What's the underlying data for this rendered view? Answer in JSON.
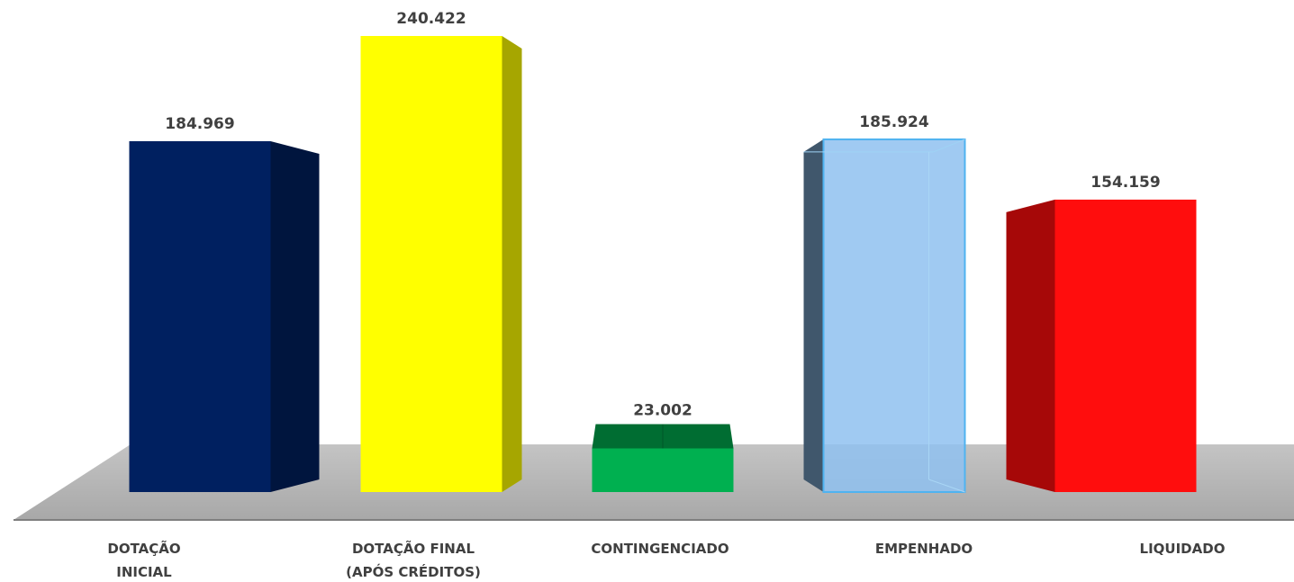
{
  "chart_data": {
    "type": "bar",
    "three_d": true,
    "categories": [
      "DOTAÇÃO INICIAL",
      "DOTAÇÃO FINAL (APÓS CRÉDITOS)",
      "CONTINGENCIADO",
      "EMPENHADO",
      "LIQUIDADO"
    ],
    "category_lines": [
      [
        "DOTAÇÃO",
        "INICIAL"
      ],
      [
        "DOTAÇÃO FINAL",
        "(APÓS CRÉDITOS)"
      ],
      [
        "CONTINGENCIADO"
      ],
      [
        "EMPENHADO"
      ],
      [
        "LIQUIDADO"
      ]
    ],
    "values": [
      184969,
      240422,
      23002,
      185924,
      154159
    ],
    "value_labels": [
      "184.969",
      "240.422",
      "23.002",
      "185.924",
      "154.159"
    ],
    "colors": [
      "#002060",
      "#FFFF00",
      "#00B050",
      "#8FC1F0",
      "#FF0D0D"
    ],
    "floor_color": "#BFBFBF",
    "ylim": [
      0,
      240422
    ],
    "grid": false,
    "legend": "none"
  }
}
